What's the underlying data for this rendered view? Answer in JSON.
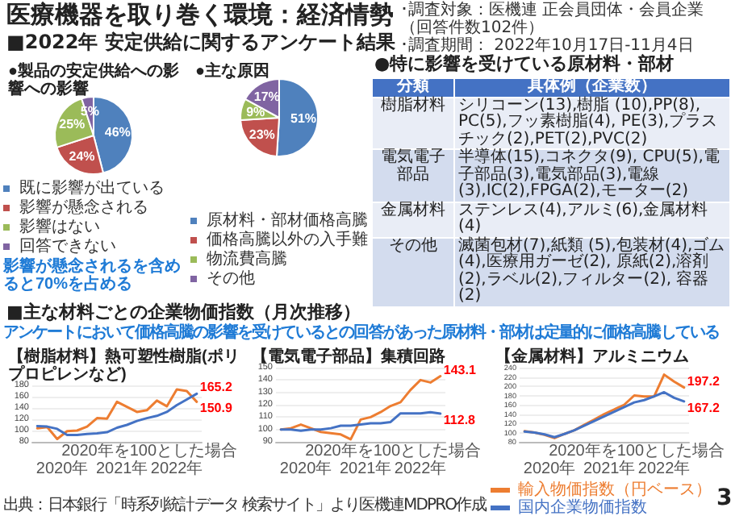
{
  "chart_data": [
    {
      "type": "other",
      "title": "医療機器を取り巻く環境：経済情勢",
      "subtitle": "■2022年 安定供給に関するアンケート結果",
      "annotations": [
        "･調査対象：医機連 正会員団体・会員企業（回答件数102件）",
        "･調査期間： 2022年10月17日-11月4日"
      ]
    },
    {
      "type": "pie",
      "title": "●製品の安定供給への影響への影響",
      "categories": [
        "既に影響が出ている",
        "影響が懸念される",
        "影響はない",
        "回答できない"
      ],
      "values": [
        46,
        24,
        25,
        5
      ],
      "value_labels": [
        "46%",
        "24%",
        "25%",
        "5%"
      ],
      "colors": [
        "#4f81bd",
        "#c0504d",
        "#9bbb59",
        "#8064a2"
      ],
      "legend": "bottom",
      "annotations": [
        "影響が懸念されるを含めると70%を占める"
      ]
    },
    {
      "type": "pie",
      "title": "●主な原因",
      "categories": [
        "原材料・部材価格高騰",
        "価格高騰以外の入手難",
        "物流費高騰",
        "その他"
      ],
      "values": [
        51,
        23,
        9,
        17
      ],
      "value_labels": [
        "51%",
        "23%",
        "9%",
        "17%"
      ],
      "colors": [
        "#4f81bd",
        "#c0504d",
        "#9bbb59",
        "#8064a2"
      ],
      "legend": "bottom"
    },
    {
      "type": "other",
      "title": "●特に影響を受けている原材料・部材",
      "annotations": [
        "分類",
        "具体例（企業数）",
        "樹脂材料",
        "シリコーン(13),樹脂 (10),PP(8), PC(5),フッ素樹脂(4), PE(3),プラスチック(2),PET(2),PVC(2)",
        "電気電子部品",
        "半導体(15),コネクタ(9), CPU(5),電子部品(3),電気部品(3),電線(3),IC(2),FPGA(2),モーター(2)",
        "金属材料",
        "ステンレス(4),アルミ(6),金属材料(4)",
        "その他",
        "滅菌包材(7),紙類 (5),包装材(4),ゴム(4),医療用ガーゼ(2), 原紙(2),溶剤(2),ラベル(2),フィルター(2), 容器(2)"
      ]
    },
    {
      "type": "other",
      "title": "■主な材料ごとの企業物価指数（月次推移）",
      "subtitle": "アンケートにおいて価格高騰の影響を受けているとの回答があった原材料・部材は定量的に価格高騰している",
      "annotations": [
        "出典：日本銀行「時系列統計データ 検索サイト」より医機連MDPRO作成",
        "3"
      ]
    },
    {
      "type": "line",
      "title": "【樹脂材料】熱可塑性樹脂(ポリプロピレンなど)",
      "categories": [
        null,
        null,
        null,
        null,
        null,
        null,
        null,
        null,
        null,
        null,
        null,
        null,
        null,
        null,
        null,
        null,
        null
      ],
      "ylim": [
        80,
        180
      ],
      "yticks": [
        80,
        100,
        120,
        140,
        160,
        180
      ],
      "grid": "y",
      "marker": "none",
      "annotations": [
        "2020年を100とした場合",
        "2020年",
        "2021年",
        "2022年"
      ],
      "series": [
        {
          "color": "#ed7d31",
          "values": [
            104,
            106,
            85,
            99,
            100,
            107,
            122,
            121,
            151,
            142,
            133,
            136,
            153,
            143,
            173,
            170,
            150.9
          ],
          "value_labels": [
            null,
            null,
            null,
            null,
            null,
            null,
            null,
            null,
            null,
            null,
            null,
            null,
            null,
            null,
            null,
            null,
            "150.9"
          ]
        },
        {
          "color": "#4472c4",
          "values": [
            108,
            107,
            103,
            92,
            92,
            94,
            95,
            97,
            105,
            110,
            117,
            122,
            126,
            133,
            145,
            155,
            165.2
          ],
          "value_labels": [
            null,
            null,
            null,
            null,
            null,
            null,
            null,
            null,
            null,
            null,
            null,
            null,
            null,
            null,
            null,
            null,
            "165.2"
          ]
        }
      ]
    },
    {
      "type": "line",
      "title": "【電気電子部品】集積回路",
      "categories": [
        null,
        null,
        null,
        null,
        null,
        null,
        null,
        null,
        null,
        null,
        null,
        null,
        null,
        null,
        null,
        null,
        null
      ],
      "ylim": [
        90,
        150
      ],
      "yticks": [
        90,
        100,
        110,
        120,
        130,
        140,
        150
      ],
      "grid": "y",
      "marker": "none",
      "annotations": [
        "2020年を100とした場合",
        "2020年",
        "2021年",
        "2022年"
      ],
      "series": [
        {
          "color": "#ed7d31",
          "values": [
            100,
            101,
            104,
            101,
            98,
            97,
            96,
            92,
            108,
            110,
            114,
            119,
            122,
            132,
            140,
            138,
            143.1
          ],
          "value_labels": [
            null,
            null,
            null,
            null,
            null,
            null,
            null,
            null,
            null,
            null,
            null,
            null,
            null,
            null,
            null,
            null,
            "143.1"
          ]
        },
        {
          "color": "#4472c4",
          "values": [
            100,
            100,
            99,
            100,
            100,
            101,
            103,
            103,
            104,
            105,
            105,
            106,
            113,
            113,
            113,
            114,
            112.8
          ],
          "value_labels": [
            null,
            null,
            null,
            null,
            null,
            null,
            null,
            null,
            null,
            null,
            null,
            null,
            null,
            null,
            null,
            null,
            "112.8"
          ]
        }
      ]
    },
    {
      "type": "line",
      "title": "【金属材料】アルミニウム",
      "categories": [
        null,
        null,
        null,
        null,
        null,
        null,
        null,
        null,
        null,
        null,
        null,
        null,
        null,
        null,
        null,
        null,
        null
      ],
      "ylim": [
        80,
        240
      ],
      "yticks": [
        80,
        100,
        120,
        140,
        160,
        180,
        200,
        220,
        240
      ],
      "grid": "y",
      "marker": "none",
      "legend": "bottom",
      "annotations": [
        "2020年を100とした場合",
        "2020年",
        "2021年",
        "2022年"
      ],
      "series": [
        {
          "name": "輸入物価指数（円ベース）",
          "color": "#ed7d31",
          "values": [
            103,
            100,
            95,
            88,
            97,
            105,
            117,
            128,
            140,
            150,
            160,
            180,
            178,
            178,
            225,
            210,
            197.2
          ],
          "value_labels": [
            null,
            null,
            null,
            null,
            null,
            null,
            null,
            null,
            null,
            null,
            null,
            null,
            null,
            null,
            null,
            null,
            "197.2"
          ]
        },
        {
          "name": "国内企業物価指数",
          "color": "#4472c4",
          "values": [
            102,
            100,
            96,
            90,
            97,
            105,
            115,
            125,
            135,
            145,
            155,
            165,
            170,
            178,
            187,
            175,
            167.2
          ],
          "value_labels": [
            null,
            null,
            null,
            null,
            null,
            null,
            null,
            null,
            null,
            null,
            null,
            null,
            null,
            null,
            null,
            null,
            "167.2"
          ]
        }
      ]
    }
  ]
}
